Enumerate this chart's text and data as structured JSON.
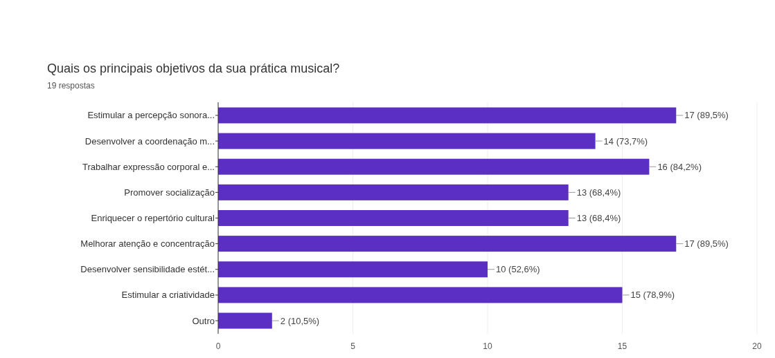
{
  "chart_data": {
    "type": "bar",
    "orientation": "horizontal",
    "title": "Quais os principais objetivos da sua prática musical?",
    "subtitle": "19 respostas",
    "categories": [
      "Estimular a percepção sonora...",
      "Desenvolver a coordenação m...",
      "Trabalhar expressão corporal e...",
      "Promover socialização",
      "Enriquecer o repertório cultural",
      "Melhorar atenção e concentração",
      "Desenvolver sensibilidade estét...",
      "Estimular a criatividade",
      "Outro"
    ],
    "values": [
      17,
      14,
      16,
      13,
      13,
      17,
      10,
      15,
      2
    ],
    "value_labels": [
      "17 (89,5%)",
      "14 (73,7%)",
      "16 (84,2%)",
      "13 (68,4%)",
      "13 (68,4%)",
      "17 (89,5%)",
      "10 (52,6%)",
      "15 (78,9%)",
      "2 (10,5%)"
    ],
    "color": "#5b2fc4",
    "xlim": [
      0,
      20
    ],
    "xticks": [
      0,
      5,
      10,
      15,
      20
    ],
    "grid": "x"
  }
}
